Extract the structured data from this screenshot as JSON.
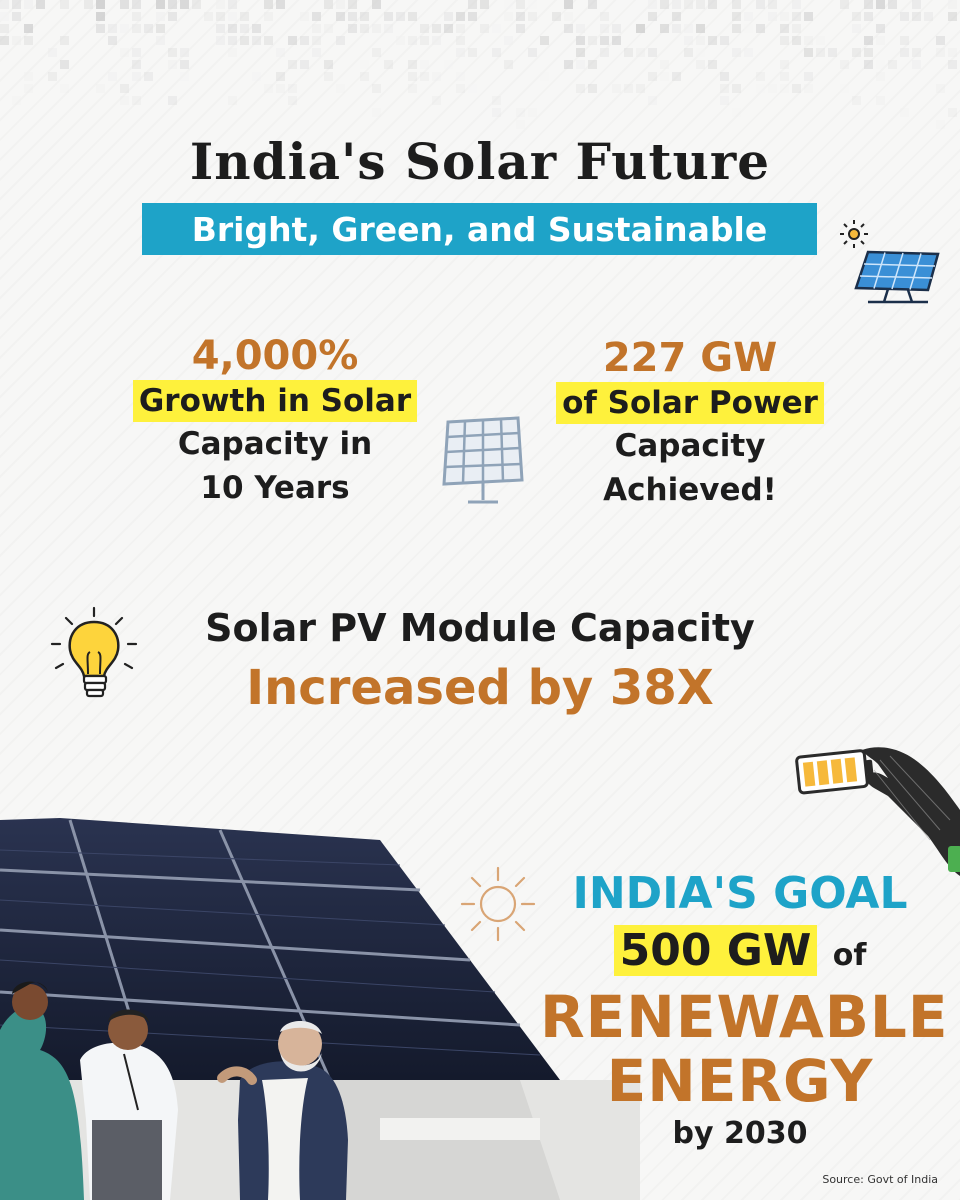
{
  "header": {
    "title": "India's Solar Future",
    "subtitle": "Bright, Green, and Sustainable"
  },
  "stats": {
    "left": {
      "value": "4,000%",
      "highlight": "Growth in Solar",
      "line1": "Capacity in",
      "line2": "10 Years"
    },
    "right": {
      "value": "227 GW",
      "highlight": "of Solar Power",
      "line1": "Capacity",
      "line2": "Achieved!"
    }
  },
  "module": {
    "line1": "Solar PV Module Capacity",
    "line2": "Increased by 38X"
  },
  "goal": {
    "title": "INDIA'S GOAL",
    "highlight": "500 GW",
    "of": "of",
    "big1": "RENEWABLE",
    "big2": "ENERGY",
    "by": "by 2030"
  },
  "source": "Source: Govt of India",
  "colors": {
    "accent_blue": "#1ea3c8",
    "accent_orange": "#c2742a",
    "highlight_yellow": "#fef13c"
  },
  "icons": [
    "solar-panel-sun-icon",
    "solar-panel-icon",
    "lightbulb-icon",
    "battery-hand-icon",
    "sun-icon"
  ]
}
